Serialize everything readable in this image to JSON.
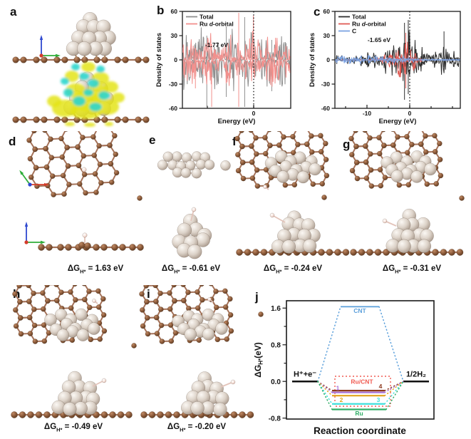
{
  "dg_prefix": "ΔG",
  "dg_sub": "H*",
  "panels": {
    "a": {
      "letter": "a"
    },
    "b": {
      "letter": "b",
      "ylabel": "Density of states",
      "xlabel": "Energy (eV)",
      "yticks": [
        "60",
        "30",
        "0",
        "-30",
        "-60"
      ],
      "xticks": [
        "0"
      ],
      "annotation": "-1.77 eV",
      "legend_total": "Total",
      "legend_ru_pre": "Ru ",
      "legend_ru_d": "d",
      "legend_ru_post": "-orbital"
    },
    "c": {
      "letter": "c",
      "ylabel": "Density of states",
      "xlabel": "Energy (eV)",
      "yticks": [
        "60",
        "30",
        "0",
        "-30",
        "-60"
      ],
      "xticks": [
        "-10",
        "0"
      ],
      "annotation": "-1.65 eV",
      "legend_total": "Total",
      "legend_ru_pre": "Ru ",
      "legend_ru_d": "d",
      "legend_ru_post": "-orbital",
      "legend_c": "C"
    },
    "d": {
      "letter": "d",
      "dg_value": " = 1.63 eV"
    },
    "e": {
      "letter": "e",
      "dg_value": " = -0.61 eV"
    },
    "f": {
      "letter": "f",
      "dg_value": " = -0.24 eV"
    },
    "g": {
      "letter": "g",
      "dg_value": " = -0.31 eV"
    },
    "h": {
      "letter": "h",
      "dg_value": " = -0.49 eV"
    },
    "i": {
      "letter": "i",
      "dg_value": " = -0.20 eV"
    },
    "j": {
      "letter": "j",
      "ylabel_suffix": "(eV)",
      "xlabel": "Reaction coordinate",
      "yticks": [
        "1.6",
        "0.8",
        "0.0",
        "-0.8"
      ],
      "left_state": "H⁺+e⁻",
      "right_state": "1/2H₂",
      "label_cnt": "CNT",
      "label_rucnt": "Ru/CNT",
      "label_1": "1",
      "label_2": "2",
      "label_3": "3",
      "label_4": "4",
      "label_ru": "Ru"
    }
  },
  "chart_data": [
    {
      "type": "line",
      "panel": "b",
      "title": "",
      "xlabel": "Energy (eV)",
      "ylabel": "Density of states",
      "xlim": [
        -15,
        5
      ],
      "ylim": [
        -60,
        60
      ],
      "fermi_level_x": 0,
      "grid": false,
      "legend_position": "top-left",
      "series": [
        {
          "name": "Total",
          "color": "#8f8f8f"
        },
        {
          "name": "Ru d-orbital",
          "color": "#f2908d"
        }
      ],
      "annotations": [
        {
          "text": "-1.77 eV"
        }
      ],
      "note": "spin-resolved noisy DOS spectra mirrored about zero"
    },
    {
      "type": "line",
      "panel": "c",
      "title": "",
      "xlabel": "Energy (eV)",
      "ylabel": "Density of states",
      "xlim": [
        -15,
        7
      ],
      "ylim": [
        -60,
        60
      ],
      "fermi_level_x": 0,
      "grid": false,
      "legend_position": "top-left",
      "series": [
        {
          "name": "Total",
          "color": "#2f2f2f"
        },
        {
          "name": "Ru d-orbital",
          "color": "#e05b55"
        },
        {
          "name": "C",
          "color": "#7ba2e2"
        }
      ],
      "annotations": [
        {
          "text": "-1.65 eV"
        }
      ],
      "note": "spin-resolved noisy DOS spectra mirrored about zero"
    },
    {
      "type": "energy-diagram",
      "panel": "j",
      "xlabel": "Reaction coordinate",
      "ylabel": "ΔG_H*(eV)",
      "ylim": [
        -0.8,
        1.6
      ],
      "initial_state": {
        "label": "H⁺+e⁻",
        "value": 0.0
      },
      "final_state": {
        "label": "1/2H₂",
        "value": 0.0
      },
      "levels": [
        {
          "name": "CNT",
          "dG": 1.63,
          "color": "#5a9fdb"
        },
        {
          "name": "4",
          "dG": -0.2,
          "color": "#8e3a20"
        },
        {
          "name": "1",
          "dG": -0.24,
          "color": "#a972d8"
        },
        {
          "name": "2",
          "dG": -0.31,
          "color": "#e2a51f"
        },
        {
          "name": "3",
          "dG": -0.49,
          "color": "#3fdfdb"
        },
        {
          "name": "Ru",
          "dG": -0.61,
          "color": "#2fae66"
        }
      ],
      "group_label": {
        "text": "Ru/CNT",
        "members": [
          "1",
          "2",
          "3",
          "4"
        ],
        "color": "#f05a50"
      }
    }
  ]
}
